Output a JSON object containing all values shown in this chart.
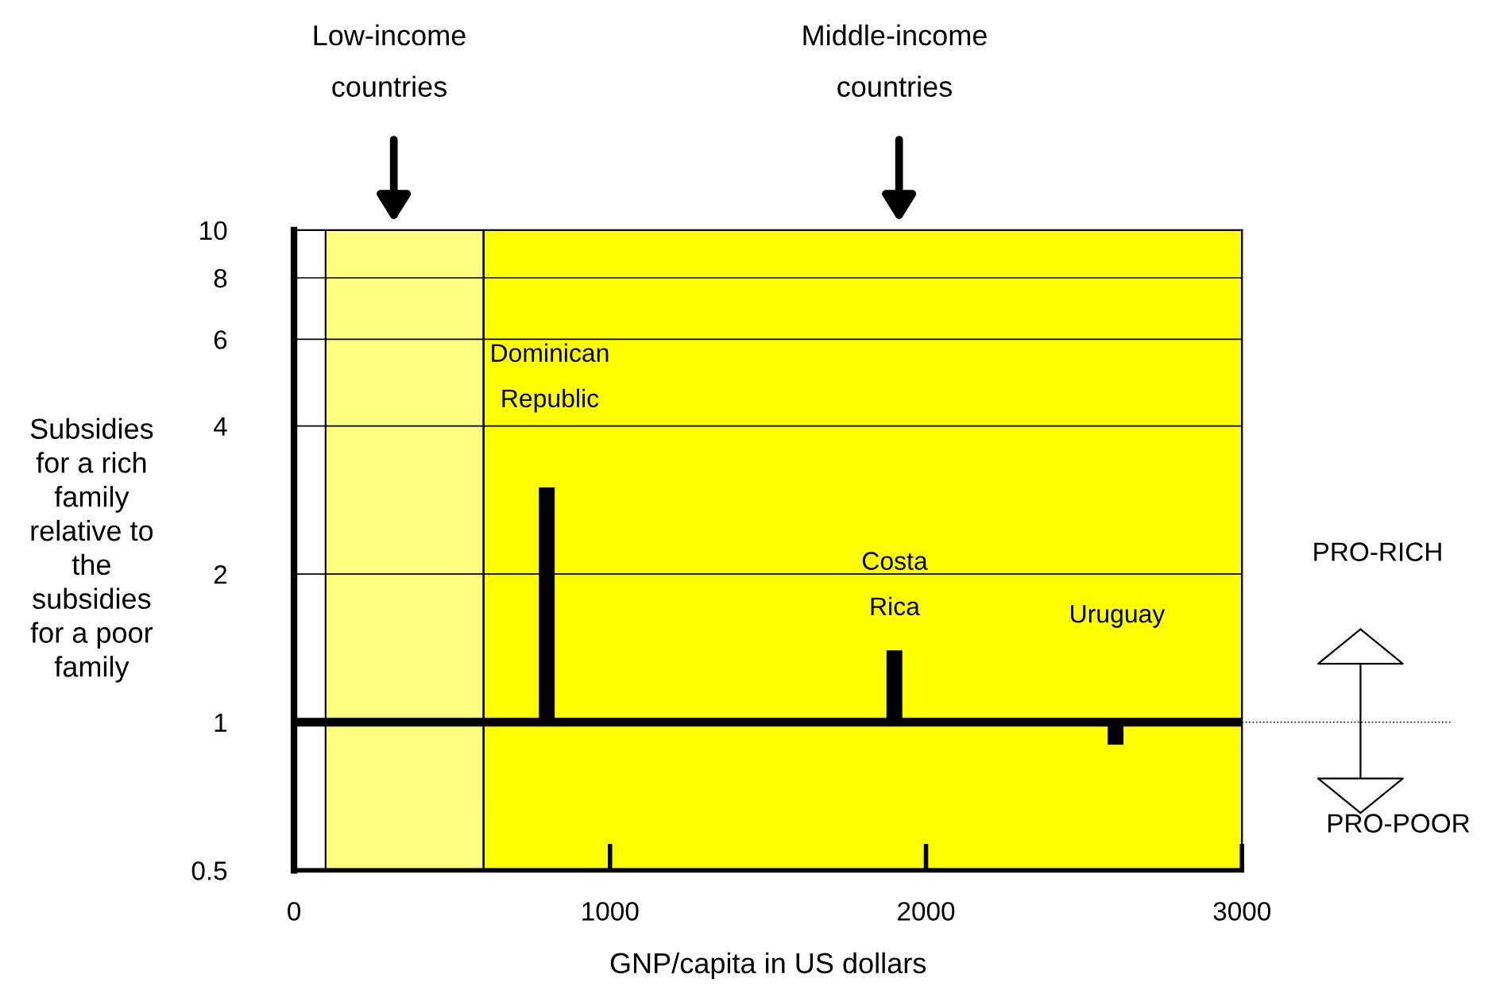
{
  "chart_data": {
    "type": "bar",
    "ylabel": "Subsidies\nfor a rich\nfamily\nrelative to\nthe\nsubsidies\nfor a poor\nfamily",
    "xlabel": "GNP/capita in US dollars",
    "x": [
      800,
      1900,
      2600
    ],
    "base": [
      1,
      1,
      1
    ],
    "values": [
      2,
      0.4,
      -0.1
    ],
    "color": "#000000",
    "log": "y",
    "xlim": [
      0,
      3000
    ],
    "xticks": [
      0,
      1000,
      2000,
      3000
    ],
    "ylim": [
      0.5,
      10
    ],
    "yticks": [
      0.5,
      1,
      2,
      4,
      6,
      8,
      10
    ],
    "grid": "y",
    "bands": [
      {
        "axis": "x",
        "from": 100,
        "to": 600,
        "color": "#ffff80"
      },
      {
        "axis": "x",
        "from": 600,
        "to": 3000,
        "color": "#ffff00"
      }
    ],
    "ref_lines": [
      {
        "axis": "y",
        "value": 1,
        "color": "#000000"
      }
    ],
    "annotations": [
      "Low-income\n\ncountries",
      "Middle-income\n\ncountries",
      "Dominican\n\nRepublic",
      "Costa\n\nRica",
      "Uruguay",
      "PRO-RICH",
      "PRO-POOR"
    ]
  }
}
